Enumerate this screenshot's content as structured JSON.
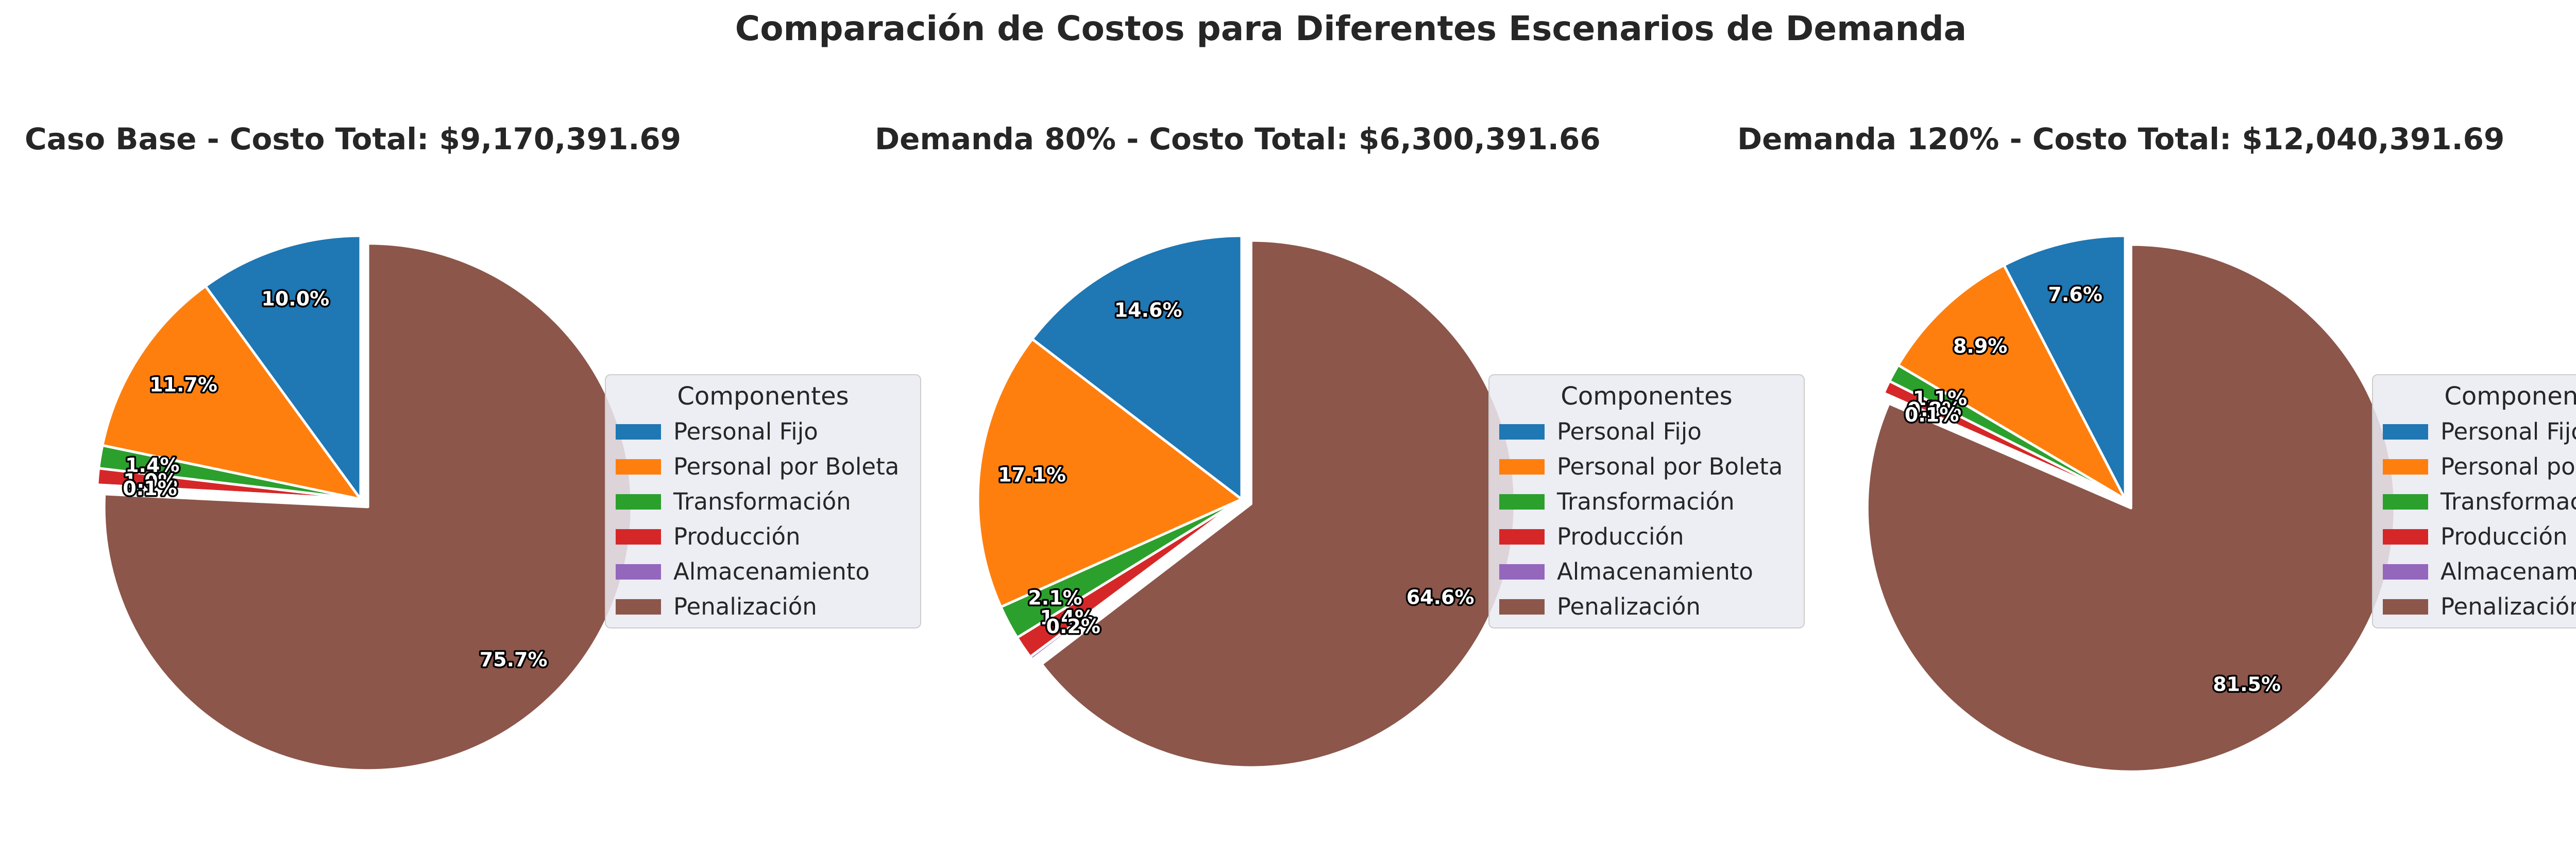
{
  "title": "Comparación de Costos para Diferentes Escenarios de Demanda",
  "legend": {
    "title": "Componentes",
    "labels": [
      "Personal Fijo",
      "Personal por Boleta",
      "Transformación",
      "Producción",
      "Almacenamiento",
      "Penalización"
    ]
  },
  "colors": {
    "Personal Fijo": "#1f77b4",
    "Personal por Boleta": "#ff7f0e",
    "Transformación": "#2ca02c",
    "Producción": "#d62728",
    "Almacenamiento": "#9467bd",
    "Penalización": "#8c564b"
  },
  "chart_data": [
    {
      "type": "pie",
      "title": "Caso Base - Costo Total: $9,170,391.69",
      "categories": [
        "Personal Fijo",
        "Personal por Boleta",
        "Transformación",
        "Producción",
        "Almacenamiento",
        "Penalización"
      ],
      "values": [
        10.0,
        11.7,
        1.4,
        1.0,
        0.1,
        75.7
      ],
      "labels": [
        "10.0%",
        "11.7%",
        "1.4%",
        "1.0%",
        "0.1%",
        "75.7%"
      ],
      "exploded": "Penalización",
      "legend_position": "center-right"
    },
    {
      "type": "pie",
      "title": "Demanda 80% - Costo Total: $6,300,391.66",
      "categories": [
        "Personal Fijo",
        "Personal por Boleta",
        "Transformación",
        "Producción",
        "Almacenamiento",
        "Penalización"
      ],
      "values": [
        14.6,
        17.1,
        2.1,
        1.4,
        0.2,
        64.6
      ],
      "labels": [
        "14.6%",
        "17.1%",
        "2.1%",
        "1.4%",
        "0.2%",
        "64.6%"
      ],
      "exploded": "Penalización",
      "legend_position": "center-right"
    },
    {
      "type": "pie",
      "title": "Demanda 120% - Costo Total: $12,040,391.69",
      "categories": [
        "Personal Fijo",
        "Personal por Boleta",
        "Transformación",
        "Producción",
        "Almacenamiento",
        "Penalización"
      ],
      "values": [
        7.6,
        8.9,
        1.1,
        0.8,
        0.1,
        81.5
      ],
      "labels": [
        "7.6%",
        "8.9%",
        "1.1%",
        "0.8%",
        "0.1%",
        "81.5%"
      ],
      "exploded": "Penalización",
      "legend_position": "center-right"
    }
  ]
}
